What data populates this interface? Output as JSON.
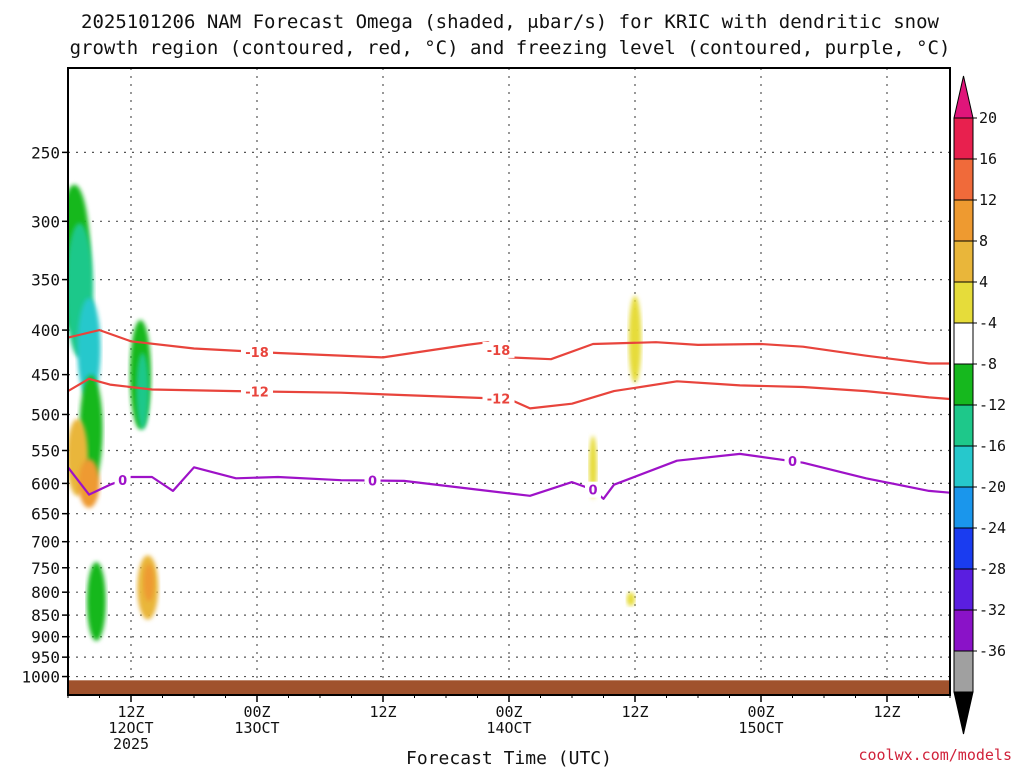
{
  "title_line1": "2025101206 NAM Forecast Omega (shaded, μbar/s) for KRIC with dendritic snow",
  "title_line2": "growth region (contoured, red, °C) and freezing level (contoured, purple, °C)",
  "credit": "coolwx.com/models",
  "chart_data": {
    "type": "heatmap",
    "title": "2025101206 NAM Forecast Omega (shaded, μbar/s) for KRIC with dendritic snow growth region (contoured, red, °C) and freezing level (contoured, purple, °C)",
    "xlabel": "Forecast Time (UTC)",
    "ylabel": "",
    "x_range_hours": [
      0,
      84
    ],
    "pressure_ticks": [
      250,
      300,
      350,
      400,
      450,
      500,
      550,
      600,
      650,
      700,
      750,
      800,
      850,
      900,
      950,
      1000
    ],
    "y_range_hpa": [
      200,
      1050
    ],
    "y_scale": "log",
    "x_ticks": [
      {
        "hour": 6,
        "line1": "12Z",
        "line2": "12OCT",
        "line3": "2025"
      },
      {
        "hour": 18,
        "line1": "00Z",
        "line2": "13OCT",
        "line3": ""
      },
      {
        "hour": 30,
        "line1": "12Z",
        "line2": "",
        "line3": ""
      },
      {
        "hour": 42,
        "line1": "00Z",
        "line2": "14OCT",
        "line3": ""
      },
      {
        "hour": 54,
        "line1": "12Z",
        "line2": "",
        "line3": ""
      },
      {
        "hour": 66,
        "line1": "00Z",
        "line2": "15OCT",
        "line3": ""
      },
      {
        "hour": 78,
        "line1": "12Z",
        "line2": "",
        "line3": ""
      }
    ],
    "colorbar": {
      "labels": [
        "20",
        "16",
        "12",
        "8",
        "4",
        "-4",
        "-8",
        "-12",
        "-16",
        "-20",
        "-24",
        "-28",
        "-32",
        "-36"
      ],
      "colors": [
        "#e8204e",
        "#f06a3a",
        "#ee9a30",
        "#e9b63a",
        "#e6dc3a",
        "#ffffff",
        "#16b81e",
        "#1ec88a",
        "#26c8cc",
        "#1a96ec",
        "#1a3cf0",
        "#5a1ee0",
        "#8a12c8",
        "#a0a0a0"
      ],
      "top_arrow_color": "#e0157a",
      "bottom_arrow_color": "#000000"
    },
    "omega_blobs": [
      {
        "hour": 0.6,
        "p": 330,
        "dh": 1.5,
        "dp": 70,
        "value": -8
      },
      {
        "hour": 1.1,
        "p": 360,
        "dh": 1.3,
        "dp": 70,
        "value": -12
      },
      {
        "hour": 2.0,
        "p": 420,
        "dh": 1.1,
        "dp": 60,
        "value": -16
      },
      {
        "hour": 2.2,
        "p": 520,
        "dh": 1.1,
        "dp": 80,
        "value": -8
      },
      {
        "hour": 0.9,
        "p": 560,
        "dh": 1.0,
        "dp": 60,
        "value": 8
      },
      {
        "hour": 2.0,
        "p": 600,
        "dh": 1.0,
        "dp": 40,
        "value": 12
      },
      {
        "hour": 2.7,
        "p": 820,
        "dh": 0.9,
        "dp": 90,
        "value": -8
      },
      {
        "hour": 6.9,
        "p": 450,
        "dh": 1.0,
        "dp": 70,
        "value": -8
      },
      {
        "hour": 7.1,
        "p": 470,
        "dh": 0.6,
        "dp": 50,
        "value": -12
      },
      {
        "hour": 7.6,
        "p": 790,
        "dh": 1.0,
        "dp": 70,
        "value": 8
      },
      {
        "hour": 7.7,
        "p": 780,
        "dh": 0.5,
        "dp": 40,
        "value": 12
      },
      {
        "hour": 50.0,
        "p": 575,
        "dh": 0.3,
        "dp": 50,
        "value": 4
      },
      {
        "hour": 54.0,
        "p": 410,
        "dh": 0.6,
        "dp": 50,
        "value": 4
      },
      {
        "hour": 53.6,
        "p": 815,
        "dh": 0.4,
        "dp": 15,
        "value": 4
      }
    ],
    "series": [
      {
        "name": "-18",
        "color": "#e8443c",
        "points": [
          [
            0,
            408
          ],
          [
            3,
            400
          ],
          [
            6,
            412
          ],
          [
            12,
            420
          ],
          [
            20,
            425
          ],
          [
            30,
            430
          ],
          [
            38,
            416
          ],
          [
            40,
            413
          ],
          [
            42,
            430
          ],
          [
            46,
            432
          ],
          [
            50,
            415
          ],
          [
            56,
            413
          ],
          [
            60,
            416
          ],
          [
            66,
            415
          ],
          [
            70,
            418
          ],
          [
            76,
            428
          ],
          [
            82,
            437
          ],
          [
            84,
            437
          ]
        ],
        "labels_at_hours": [
          18,
          41
        ]
      },
      {
        "name": "-12",
        "color": "#e8443c",
        "points": [
          [
            0,
            470
          ],
          [
            2,
            455
          ],
          [
            4,
            462
          ],
          [
            8,
            468
          ],
          [
            16,
            470
          ],
          [
            26,
            472
          ],
          [
            34,
            476
          ],
          [
            42,
            480
          ],
          [
            44,
            492
          ],
          [
            48,
            486
          ],
          [
            52,
            470
          ],
          [
            58,
            458
          ],
          [
            64,
            463
          ],
          [
            70,
            465
          ],
          [
            76,
            470
          ],
          [
            82,
            478
          ],
          [
            84,
            480
          ]
        ],
        "labels_at_hours": [
          18,
          41
        ]
      },
      {
        "name": "0",
        "color": "#9e12c8",
        "points": [
          [
            0,
            575
          ],
          [
            2,
            618
          ],
          [
            4,
            602
          ],
          [
            6,
            590
          ],
          [
            8,
            590
          ],
          [
            10,
            612
          ],
          [
            12,
            575
          ],
          [
            16,
            592
          ],
          [
            20,
            590
          ],
          [
            26,
            595
          ],
          [
            32,
            596
          ],
          [
            38,
            608
          ],
          [
            44,
            620
          ],
          [
            48,
            598
          ],
          [
            50,
            610
          ],
          [
            51,
            625
          ],
          [
            52,
            602
          ],
          [
            58,
            565
          ],
          [
            64,
            555
          ],
          [
            70,
            568
          ],
          [
            76,
            592
          ],
          [
            82,
            612
          ],
          [
            84,
            615
          ]
        ],
        "labels_at_hours": [
          5.2,
          29,
          50,
          69
        ]
      }
    ],
    "ground_band": {
      "color": "#a0522d",
      "p_top": 1010,
      "p_bottom": 1050
    }
  }
}
